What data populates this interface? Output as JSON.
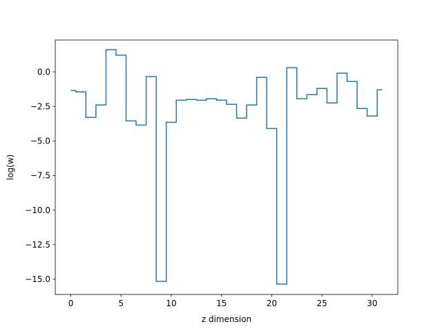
{
  "chart_data": {
    "type": "line",
    "drawstyle": "steps-mid",
    "title": "",
    "xlabel": "z dimension",
    "ylabel": "log(w)",
    "xlim": [
      -1.55,
      32.55
    ],
    "ylim": [
      -16.1,
      2.3
    ],
    "xticks": [
      0,
      5,
      10,
      15,
      20,
      25,
      30
    ],
    "xtick_labels": [
      "0",
      "5",
      "10",
      "15",
      "20",
      "25",
      "30"
    ],
    "yticks": [
      0.0,
      -2.5,
      -5.0,
      -7.5,
      -10.0,
      -12.5,
      -15.0
    ],
    "ytick_labels": [
      "0.0",
      "−2.5",
      "−5.0",
      "−7.5",
      "−10.0",
      "−12.5",
      "−15.0"
    ],
    "grid": false,
    "legend": "none",
    "series": [
      {
        "color": "#1f77b4",
        "x": [
          0,
          1,
          2,
          3,
          4,
          5,
          6,
          7,
          8,
          9,
          10,
          11,
          12,
          13,
          14,
          15,
          16,
          17,
          18,
          19,
          20,
          21,
          22,
          23,
          24,
          25,
          26,
          27,
          28,
          29,
          30,
          31
        ],
        "y": [
          -1.35,
          -1.45,
          -3.3,
          -2.4,
          1.6,
          1.2,
          -3.55,
          -3.85,
          -0.35,
          -15.15,
          -3.65,
          -2.05,
          -2.0,
          -2.05,
          -1.95,
          -2.05,
          -2.35,
          -3.35,
          -2.4,
          -0.4,
          -4.1,
          -15.35,
          0.3,
          -1.95,
          -1.65,
          -1.2,
          -2.25,
          -0.1,
          -0.7,
          -2.65,
          -3.2,
          -1.3
        ]
      }
    ]
  }
}
